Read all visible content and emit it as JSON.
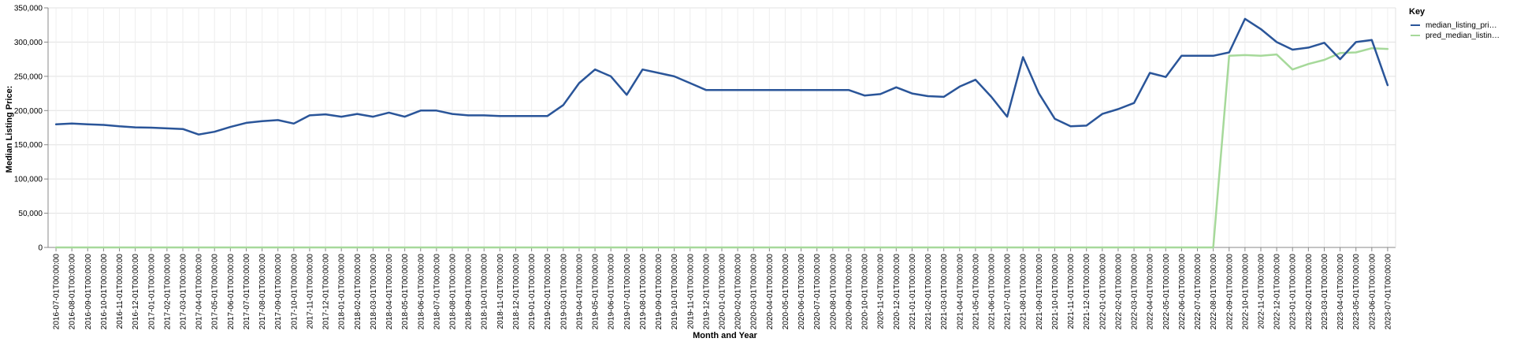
{
  "chart_data": {
    "type": "line",
    "xlabel": "Month and Year",
    "ylabel": "Median Listing Price:",
    "ylim": [
      0,
      350000
    ],
    "y_ticks": [
      0,
      50000,
      100000,
      150000,
      200000,
      250000,
      300000,
      350000
    ],
    "y_tick_labels": [
      "0",
      "50,000",
      "100,000",
      "150,000",
      "200,000",
      "250,000",
      "300,000",
      "350,000"
    ],
    "grid": true,
    "legend": {
      "title": "Key",
      "placement": "top-right",
      "entries": [
        "median_listing_pri…",
        "pred_median_listin…"
      ]
    },
    "x": [
      "2016-07-01T00:00:00",
      "2016-08-01T00:00:00",
      "2016-09-01T00:00:00",
      "2016-10-01T00:00:00",
      "2016-11-01T00:00:00",
      "2016-12-01T00:00:00",
      "2017-01-01T00:00:00",
      "2017-02-01T00:00:00",
      "2017-03-01T00:00:00",
      "2017-04-01T00:00:00",
      "2017-05-01T00:00:00",
      "2017-06-01T00:00:00",
      "2017-07-01T00:00:00",
      "2017-08-01T00:00:00",
      "2017-09-01T00:00:00",
      "2017-10-01T00:00:00",
      "2017-11-01T00:00:00",
      "2017-12-01T00:00:00",
      "2018-01-01T00:00:00",
      "2018-02-01T00:00:00",
      "2018-03-01T00:00:00",
      "2018-04-01T00:00:00",
      "2018-05-01T00:00:00",
      "2018-06-01T00:00:00",
      "2018-07-01T00:00:00",
      "2018-08-01T00:00:00",
      "2018-09-01T00:00:00",
      "2018-10-01T00:00:00",
      "2018-11-01T00:00:00",
      "2018-12-01T00:00:00",
      "2019-01-01T00:00:00",
      "2019-02-01T00:00:00",
      "2019-03-01T00:00:00",
      "2019-04-01T00:00:00",
      "2019-05-01T00:00:00",
      "2019-06-01T00:00:00",
      "2019-07-01T00:00:00",
      "2019-08-01T00:00:00",
      "2019-09-01T00:00:00",
      "2019-10-01T00:00:00",
      "2019-11-01T00:00:00",
      "2019-12-01T00:00:00",
      "2020-01-01T00:00:00",
      "2020-02-01T00:00:00",
      "2020-03-01T00:00:00",
      "2020-04-01T00:00:00",
      "2020-05-01T00:00:00",
      "2020-06-01T00:00:00",
      "2020-07-01T00:00:00",
      "2020-08-01T00:00:00",
      "2020-09-01T00:00:00",
      "2020-10-01T00:00:00",
      "2020-11-01T00:00:00",
      "2020-12-01T00:00:00",
      "2021-01-01T00:00:00",
      "2021-02-01T00:00:00",
      "2021-03-01T00:00:00",
      "2021-04-01T00:00:00",
      "2021-05-01T00:00:00",
      "2021-06-01T00:00:00",
      "2021-07-01T00:00:00",
      "2021-08-01T00:00:00",
      "2021-09-01T00:00:00",
      "2021-10-01T00:00:00",
      "2021-11-01T00:00:00",
      "2021-12-01T00:00:00",
      "2022-01-01T00:00:00",
      "2022-02-01T00:00:00",
      "2022-03-01T00:00:00",
      "2022-04-01T00:00:00",
      "2022-05-01T00:00:00",
      "2022-06-01T00:00:00",
      "2022-07-01T00:00:00",
      "2022-08-01T00:00:00",
      "2022-09-01T00:00:00",
      "2022-10-01T00:00:00",
      "2022-11-01T00:00:00",
      "2022-12-01T00:00:00",
      "2023-01-01T00:00:00",
      "2023-02-01T00:00:00",
      "2023-03-01T00:00:00",
      "2023-04-01T00:00:00",
      "2023-05-01T00:00:00",
      "2023-06-01T00:00:00",
      "2023-07-01T00:00:00"
    ],
    "series": [
      {
        "name": "median_listing_pri…",
        "color": "#2a5599",
        "values": [
          180000,
          181000,
          180000,
          179000,
          177000,
          175500,
          175000,
          174000,
          173000,
          165000,
          169000,
          176000,
          182000,
          184500,
          186000,
          181000,
          193000,
          194500,
          191000,
          195000,
          191000,
          197000,
          191000,
          200000,
          200000,
          195000,
          193000,
          193000,
          192000,
          192000,
          192000,
          192000,
          208000,
          240000,
          260000,
          250000,
          223000,
          260000,
          255000,
          250000,
          240000,
          230000,
          230000,
          230000,
          230000,
          230000,
          230000,
          230000,
          230000,
          230000,
          230000,
          222000,
          224000,
          234000,
          225000,
          221000,
          220000,
          235000,
          245000,
          220000,
          191000,
          278000,
          225000,
          188000,
          177000,
          178000,
          195000,
          202000,
          211000,
          255000,
          249000,
          280000,
          280000,
          280000,
          285000,
          334000,
          319000,
          300000,
          289000,
          292000,
          299000,
          275000,
          300000,
          303000,
          237000
        ]
      },
      {
        "name": "pred_median_listin…",
        "color": "#a6d99a",
        "values": [
          0,
          0,
          0,
          0,
          0,
          0,
          0,
          0,
          0,
          0,
          0,
          0,
          0,
          0,
          0,
          0,
          0,
          0,
          0,
          0,
          0,
          0,
          0,
          0,
          0,
          0,
          0,
          0,
          0,
          0,
          0,
          0,
          0,
          0,
          0,
          0,
          0,
          0,
          0,
          0,
          0,
          0,
          0,
          0,
          0,
          0,
          0,
          0,
          0,
          0,
          0,
          0,
          0,
          0,
          0,
          0,
          0,
          0,
          0,
          0,
          0,
          0,
          0,
          0,
          0,
          0,
          0,
          0,
          0,
          0,
          0,
          0,
          0,
          0,
          280000,
          281000,
          280000,
          282000,
          260000,
          268000,
          274000,
          284000,
          285000,
          291000,
          290000
        ]
      }
    ]
  }
}
